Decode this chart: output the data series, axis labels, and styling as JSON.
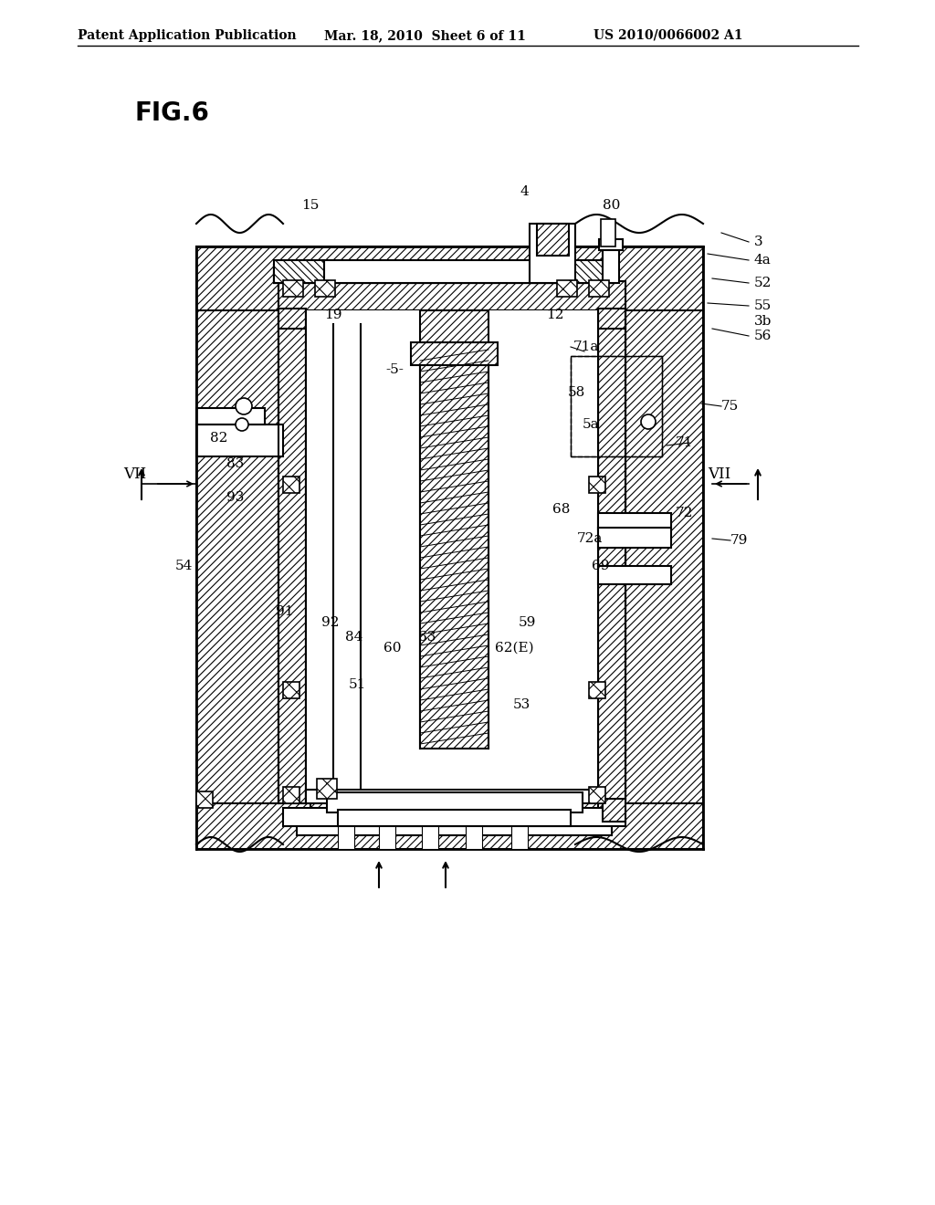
{
  "header_left": "Patent Application Publication",
  "header_mid": "Mar. 18, 2010  Sheet 6 of 11",
  "header_right": "US 2010/0066002 A1",
  "fig_label": "FIG.6",
  "bg_color": "#ffffff"
}
